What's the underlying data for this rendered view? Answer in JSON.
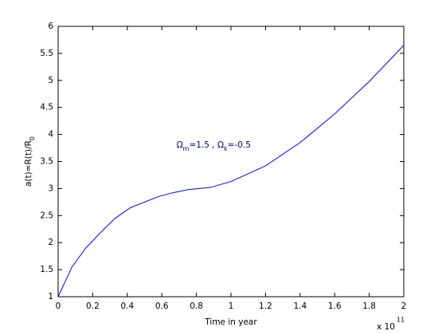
{
  "chart_data": {
    "type": "line",
    "xlabel": "Time in year",
    "ylabel": {
      "main": "a(t)=R(t)/R",
      "sub": "0"
    },
    "x_multiplier": {
      "base": "x 10",
      "exponent": "11"
    },
    "annotation": {
      "parts": [
        "Ω",
        "m",
        "=1.5 , Ω",
        "k",
        "=-0.5"
      ],
      "x": 0.9,
      "y": 3.8
    },
    "x": [
      0,
      0.08,
      0.16,
      0.25,
      0.33,
      0.42,
      0.5,
      0.58,
      0.66,
      0.75,
      0.88,
      1.0,
      1.2,
      1.4,
      1.6,
      1.8,
      2.0
    ],
    "series": [
      {
        "color": "#0000ff",
        "values": [
          1,
          1.55,
          1.9,
          2.2,
          2.45,
          2.65,
          2.75,
          2.85,
          2.92,
          2.98,
          3.02,
          3.13,
          3.42,
          3.85,
          4.38,
          4.98,
          5.65
        ]
      }
    ],
    "xlim": [
      0,
      2
    ],
    "xticks": [
      0,
      0.2,
      0.4,
      0.6,
      0.8,
      1,
      1.2,
      1.4,
      1.6,
      1.8,
      2
    ],
    "ylim": [
      1,
      6
    ],
    "yticks": [
      1,
      1.5,
      2,
      2.5,
      3,
      3.5,
      4,
      4.5,
      5,
      5.5,
      6
    ]
  }
}
